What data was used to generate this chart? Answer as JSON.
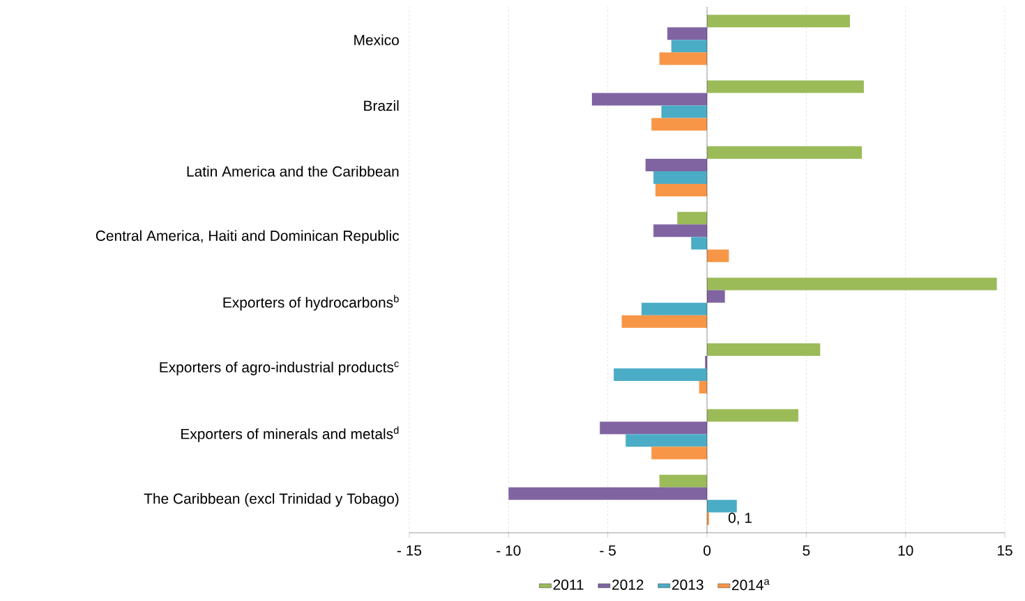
{
  "chart_data": {
    "type": "bar",
    "orientation": "horizontal",
    "categories": [
      "Mexico",
      "Brazil",
      "Latin America and the Caribbean",
      "Central America, Haiti and Dominican Republic",
      "Exporters of hydrocarbons$^{b}$",
      "Exporters of agro-industrial products$^{c}$",
      "Exporters of minerals and metals$^{d}$",
      "The Caribbean (excl Trinidad y Tobago)"
    ],
    "series": [
      {
        "name": "2011",
        "color": "#9bbb59",
        "values": [
          7.2,
          7.9,
          7.8,
          -1.5,
          14.6,
          5.7,
          4.6,
          -2.4
        ]
      },
      {
        "name": "2012",
        "color": "#8064a2",
        "values": [
          -2.0,
          -5.8,
          -3.1,
          -2.7,
          0.9,
          -0.1,
          -5.4,
          -10.0
        ]
      },
      {
        "name": "2013",
        "color": "#4bacc6",
        "values": [
          -1.8,
          -2.3,
          -2.7,
          -0.8,
          -3.3,
          -4.7,
          -4.1,
          1.5
        ]
      },
      {
        "name": "2014$^{a}$",
        "color": "#f79646",
        "values": [
          -2.4,
          -2.8,
          -2.6,
          1.1,
          -4.3,
          -0.4,
          -2.8,
          0.1
        ]
      }
    ],
    "xlim": [
      -15,
      15
    ],
    "xticks": [
      {
        "value": -15,
        "label": "- 15"
      },
      {
        "value": -10,
        "label": "- 10"
      },
      {
        "value": -5,
        "label": "- 5"
      },
      0,
      5,
      10,
      15
    ],
    "grid": "x",
    "legend": "bottom",
    "annotations": [
      {
        "text": "0, 1",
        "x": 0.1,
        "y": "The Caribbean (excl Trinidad y Tobago)"
      }
    ]
  }
}
